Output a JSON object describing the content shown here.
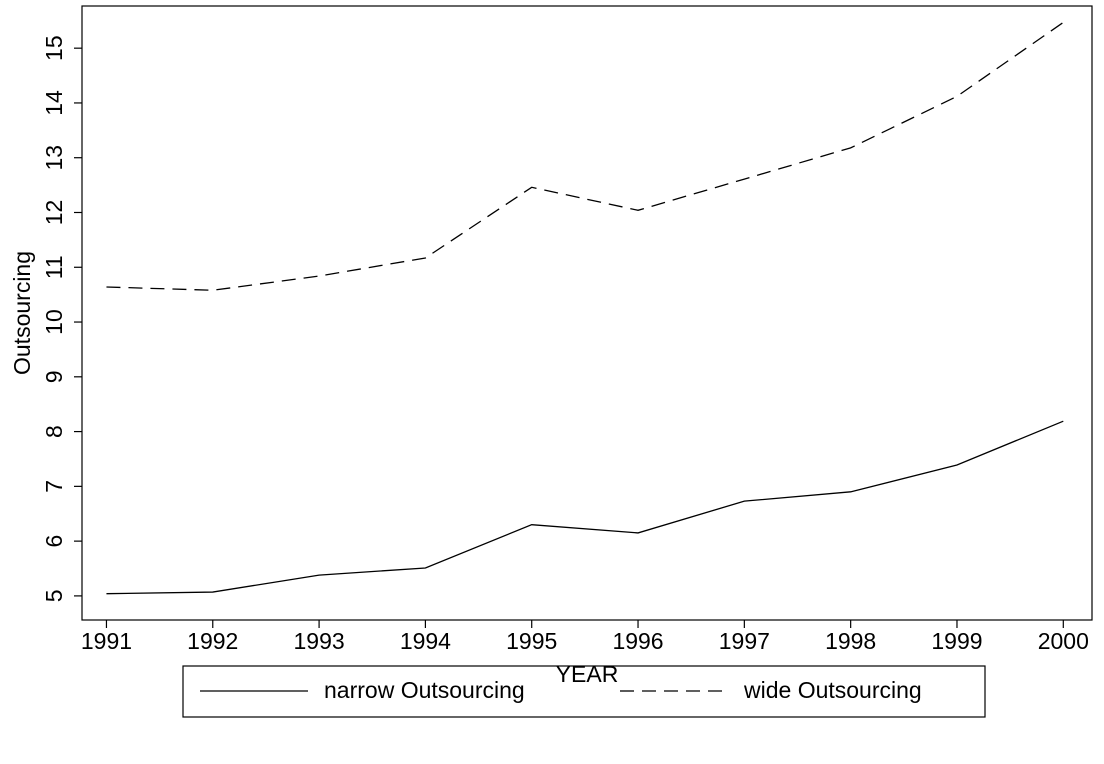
{
  "chart_data": {
    "type": "line",
    "x": [
      1991,
      1992,
      1993,
      1994,
      1995,
      1996,
      1997,
      1998,
      1999,
      2000
    ],
    "series": [
      {
        "name": "narrow Outsourcing",
        "color": "#000000",
        "linestyle": "solid",
        "values": [
          5.04,
          5.07,
          5.38,
          5.51,
          6.3,
          6.15,
          6.73,
          6.9,
          7.39,
          8.19
        ]
      },
      {
        "name": "wide Outsourcing",
        "color": "#000000",
        "linestyle": "dashed",
        "values": [
          10.64,
          10.58,
          10.84,
          11.17,
          12.46,
          12.04,
          12.61,
          13.18,
          14.12,
          15.47
        ]
      }
    ],
    "xlabel": "YEAR",
    "ylabel": "Outsourcing",
    "xlim": [
      1990.77,
      2000.27
    ],
    "ylim": [
      4.56,
      15.77
    ],
    "xticks": [
      1991,
      1992,
      1993,
      1994,
      1995,
      1996,
      1997,
      1998,
      1999,
      2000
    ],
    "yticks": [
      5,
      6,
      7,
      8,
      9,
      10,
      11,
      12,
      13,
      14,
      15
    ],
    "legend": "bottom"
  }
}
